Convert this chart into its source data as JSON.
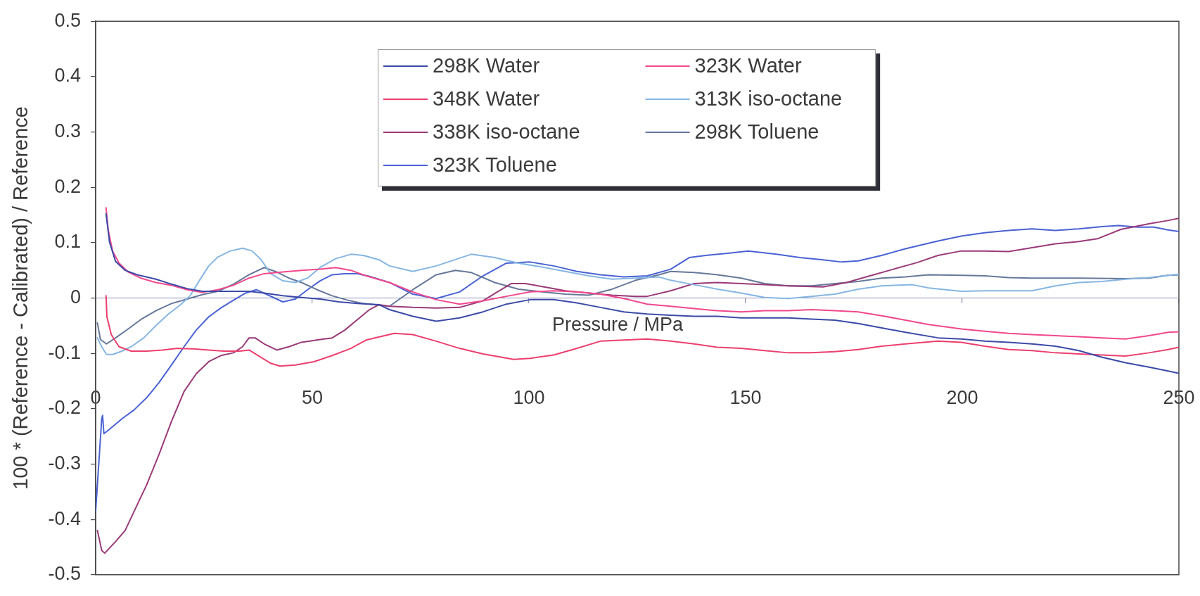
{
  "chart_data": {
    "type": "line",
    "xlabel": "Pressure / MPa",
    "ylabel": "100 * (Reference - Calibrated) / Reference",
    "xlim": [
      0,
      250
    ],
    "xticks": [
      0,
      50,
      100,
      150,
      200,
      250
    ],
    "ylim": [
      -0.5,
      0.5
    ],
    "yticks": [
      -0.5,
      -0.4,
      -0.3,
      -0.2,
      -0.1,
      0,
      0.1,
      0.2,
      0.3,
      0.4,
      0.5
    ],
    "legend": "top",
    "ref_lines": [
      {
        "axis": "y",
        "value": 0,
        "color": "#8b90b8"
      }
    ],
    "series": [
      {
        "name": "298K Water",
        "color": "#3c4aa8",
        "x": [
          2.4,
          3.2,
          4.6,
          6.8,
          9.6,
          13.9,
          17.5,
          21.1,
          24.6,
          31.8,
          35.4,
          38.9,
          43.2,
          47.5,
          51.8,
          56.1,
          60.4,
          65.4,
          67.8,
          73.2,
          78.6,
          84,
          89.4,
          94.8,
          100.3,
          105.7,
          111.1,
          116.5,
          121.9,
          127.3,
          132.7,
          138.1,
          143.5,
          149,
          159.8,
          165.2,
          170.6,
          176,
          181.4,
          186.9,
          194.4,
          199.8,
          205.2,
          210.7,
          216.1,
          221.5,
          226.9,
          232.3,
          237.7,
          243.1,
          247.5,
          250
        ],
        "values": [
          0.152,
          0.101,
          0.066,
          0.05,
          0.042,
          0.034,
          0.025,
          0.017,
          0.012,
          0.012,
          0.012,
          0.009,
          0.004,
          0.001,
          -0.002,
          -0.007,
          -0.01,
          -0.012,
          -0.021,
          -0.033,
          -0.042,
          -0.036,
          -0.025,
          -0.011,
          -0.003,
          -0.003,
          -0.009,
          -0.017,
          -0.025,
          -0.029,
          -0.031,
          -0.033,
          -0.033,
          -0.036,
          -0.036,
          -0.038,
          -0.04,
          -0.046,
          -0.054,
          -0.062,
          -0.072,
          -0.074,
          -0.078,
          -0.08,
          -0.083,
          -0.087,
          -0.095,
          -0.107,
          -0.117,
          -0.125,
          -0.132,
          -0.136
        ]
      },
      {
        "name": "323K Water",
        "color": "#f2488c",
        "x": [
          2.4,
          2.9,
          3.9,
          5.4,
          7.5,
          10.4,
          13.9,
          17.5,
          21.1,
          24.6,
          28.2,
          31.8,
          35.4,
          38.9,
          43.2,
          47.5,
          51.8,
          55.4,
          58.9,
          62.4,
          67.8,
          73.2,
          78.6,
          84,
          89.4,
          94.8,
          100.3,
          105.7,
          111.1,
          116.5,
          121.9,
          127.3,
          132.7,
          138.1,
          143.5,
          149,
          154.4,
          159.8,
          165.2,
          170.6,
          176,
          181.4,
          186.9,
          192.3,
          199.8,
          205.2,
          210.7,
          216.1,
          221.5,
          226.9,
          232.3,
          237.7,
          243.1,
          247.5,
          250
        ],
        "values": [
          0.163,
          0.123,
          0.085,
          0.063,
          0.047,
          0.036,
          0.028,
          0.023,
          0.015,
          0.01,
          0.015,
          0.023,
          0.036,
          0.044,
          0.047,
          0.05,
          0.052,
          0.055,
          0.05,
          0.04,
          0.028,
          0.011,
          -0.003,
          -0.011,
          -0.005,
          0.003,
          0.011,
          0.013,
          0.011,
          0.007,
          -0.001,
          -0.011,
          -0.015,
          -0.019,
          -0.023,
          -0.025,
          -0.023,
          -0.023,
          -0.021,
          -0.023,
          -0.025,
          -0.032,
          -0.04,
          -0.048,
          -0.056,
          -0.06,
          -0.064,
          -0.066,
          -0.068,
          -0.07,
          -0.072,
          -0.074,
          -0.068,
          -0.062,
          -0.061
        ]
      },
      {
        "name": "348K Water",
        "color": "#ec3f6e",
        "x": [
          2.4,
          2.6,
          3.6,
          5.4,
          8.2,
          11.8,
          15.4,
          18.9,
          22.5,
          26.1,
          29.6,
          33.2,
          35.4,
          37.5,
          40.4,
          42.5,
          46.1,
          50.4,
          54.6,
          58.9,
          62.4,
          68.9,
          73.2,
          78.6,
          84,
          89.4,
          96.5,
          100.3,
          105.7,
          111.1,
          116.5,
          121.9,
          127.3,
          132.7,
          138.1,
          143.5,
          149,
          154.4,
          159.8,
          165.2,
          170.6,
          176,
          181.4,
          186.9,
          194.4,
          199.8,
          205.2,
          210.7,
          216.1,
          221.5,
          226.9,
          232.3,
          237.7,
          243.1,
          247.5,
          250
        ],
        "values": [
          0.004,
          -0.034,
          -0.066,
          -0.088,
          -0.096,
          -0.096,
          -0.094,
          -0.091,
          -0.092,
          -0.094,
          -0.096,
          -0.096,
          -0.094,
          -0.104,
          -0.118,
          -0.123,
          -0.121,
          -0.115,
          -0.104,
          -0.091,
          -0.076,
          -0.064,
          -0.066,
          -0.078,
          -0.091,
          -0.101,
          -0.111,
          -0.109,
          -0.103,
          -0.091,
          -0.078,
          -0.076,
          -0.074,
          -0.078,
          -0.083,
          -0.089,
          -0.091,
          -0.095,
          -0.099,
          -0.099,
          -0.097,
          -0.093,
          -0.087,
          -0.083,
          -0.078,
          -0.08,
          -0.087,
          -0.093,
          -0.095,
          -0.099,
          -0.101,
          -0.103,
          -0.105,
          -0.099,
          -0.093,
          -0.089
        ]
      },
      {
        "name": "313K iso-octane",
        "color": "#86b6e2",
        "x": [
          0.4,
          1.4,
          2.5,
          3.9,
          6.1,
          8.2,
          11.1,
          13.9,
          16.8,
          19.6,
          21.8,
          23.9,
          26.1,
          28.2,
          31.1,
          33.9,
          36.1,
          38.2,
          40.4,
          43.2,
          46.1,
          48.9,
          51.8,
          55.4,
          58.9,
          61.8,
          65.4,
          67.8,
          73.2,
          78.6,
          86.7,
          92.1,
          97.6,
          103,
          108.4,
          113.8,
          119.2,
          124.6,
          130,
          132.7,
          138.1,
          143.5,
          149,
          154.4,
          159.8,
          165.2,
          170.6,
          176,
          181.4,
          188.5,
          192.3,
          199.8,
          205.2,
          216.1,
          221.5,
          226.9,
          232.3,
          237.7,
          243.1,
          247.5,
          250
        ],
        "values": [
          -0.072,
          -0.088,
          -0.102,
          -0.102,
          -0.096,
          -0.088,
          -0.072,
          -0.05,
          -0.029,
          -0.012,
          0.004,
          0.031,
          0.058,
          0.074,
          0.085,
          0.09,
          0.085,
          0.069,
          0.044,
          0.031,
          0.028,
          0.036,
          0.055,
          0.071,
          0.079,
          0.077,
          0.069,
          0.058,
          0.048,
          0.058,
          0.079,
          0.073,
          0.063,
          0.056,
          0.048,
          0.04,
          0.034,
          0.036,
          0.038,
          0.032,
          0.024,
          0.016,
          0.009,
          0.001,
          -0.001,
          0.003,
          0.007,
          0.016,
          0.022,
          0.024,
          0.018,
          0.012,
          0.013,
          0.013,
          0.022,
          0.028,
          0.03,
          0.034,
          0.037,
          0.041,
          0.043
        ]
      },
      {
        "name": "338K iso-octane",
        "color": "#9a3a78",
        "x": [
          0.4,
          1.4,
          2.1,
          4.6,
          6.8,
          8.9,
          11.8,
          14.6,
          17.5,
          20.4,
          23.2,
          26.1,
          28.9,
          31.8,
          33.9,
          35.4,
          36.8,
          38.9,
          41.8,
          44.6,
          47.5,
          51.8,
          54.6,
          57.5,
          60.4,
          63.2,
          65.4,
          67.8,
          73.2,
          78.6,
          84,
          89.4,
          92.7,
          95.9,
          99.2,
          103.5,
          108.4,
          113.8,
          119.2,
          124.6,
          127.3,
          132.7,
          138.1,
          143.5,
          149,
          154.4,
          159.8,
          167.9,
          173.3,
          178.7,
          184.1,
          189.6,
          194.4,
          199.8,
          205.2,
          210.7,
          216.1,
          221.5,
          226.9,
          231.2,
          236.6,
          243.1,
          247.5,
          250
        ],
        "values": [
          -0.42,
          -0.456,
          -0.461,
          -0.44,
          -0.42,
          -0.385,
          -0.337,
          -0.283,
          -0.223,
          -0.169,
          -0.137,
          -0.115,
          -0.104,
          -0.099,
          -0.088,
          -0.072,
          -0.072,
          -0.083,
          -0.094,
          -0.088,
          -0.08,
          -0.075,
          -0.072,
          -0.058,
          -0.039,
          -0.021,
          -0.012,
          -0.015,
          -0.017,
          -0.018,
          -0.017,
          -0.005,
          0.011,
          0.026,
          0.026,
          0.02,
          0.013,
          0.009,
          0.005,
          0.003,
          0.003,
          0.013,
          0.026,
          0.028,
          0.026,
          0.024,
          0.022,
          0.02,
          0.028,
          0.04,
          0.052,
          0.064,
          0.077,
          0.085,
          0.085,
          0.084,
          0.091,
          0.098,
          0.102,
          0.107,
          0.124,
          0.134,
          0.14,
          0.144
        ]
      },
      {
        "name": "298K Toluene",
        "color": "#66789a",
        "x": [
          0.4,
          1.1,
          2.5,
          4.6,
          7.5,
          10.4,
          13.9,
          17.5,
          21.1,
          24.6,
          28.2,
          31.8,
          35.4,
          38.9,
          41.8,
          44.6,
          47.5,
          51.1,
          54.6,
          58.2,
          61.8,
          67.8,
          73.2,
          78.6,
          83,
          86.7,
          92.1,
          97.6,
          103,
          108.4,
          113.8,
          119.2,
          124.6,
          130,
          132.7,
          138.1,
          143.5,
          149,
          154.4,
          159.8,
          165.2,
          170.6,
          176,
          181.4,
          186.9,
          192.3,
          199.8,
          205.2,
          210.7,
          216.1,
          226.9,
          237.7,
          243.1,
          247.5,
          250
        ],
        "values": [
          -0.045,
          -0.075,
          -0.083,
          -0.072,
          -0.056,
          -0.039,
          -0.023,
          -0.01,
          -0.002,
          0.006,
          0.012,
          0.025,
          0.042,
          0.055,
          0.047,
          0.036,
          0.028,
          0.015,
          0.004,
          -0.004,
          -0.01,
          -0.015,
          0.015,
          0.042,
          0.05,
          0.046,
          0.028,
          0.016,
          0.011,
          0.007,
          0.005,
          0.016,
          0.032,
          0.042,
          0.048,
          0.046,
          0.042,
          0.036,
          0.026,
          0.022,
          0.022,
          0.026,
          0.03,
          0.036,
          0.038,
          0.042,
          0.041,
          0.04,
          0.037,
          0.036,
          0.036,
          0.035,
          0.036,
          0.041,
          0.042
        ]
      },
      {
        "name": "323K Toluene",
        "color": "#4a62d4",
        "x": [
          0,
          1.4,
          1.6,
          1.9,
          3.2,
          6.1,
          8.9,
          11.8,
          14.6,
          17.5,
          20.4,
          23.2,
          26.1,
          28.9,
          31.8,
          34.6,
          37.1,
          39.6,
          43.2,
          46.1,
          48.9,
          51.8,
          54.6,
          57.5,
          60.4,
          63.2,
          67.8,
          73.2,
          78.6,
          84,
          89.4,
          94.8,
          100.3,
          105.7,
          111.1,
          116.5,
          121.9,
          127.3,
          132.7,
          137,
          140.8,
          146.2,
          150.6,
          157.1,
          162.5,
          167.9,
          172.2,
          176,
          181.4,
          186.9,
          194.4,
          199.8,
          205.2,
          210.7,
          216.1,
          221.5,
          226.9,
          232.3,
          236.1,
          240.4,
          244.2,
          247.5,
          250
        ],
        "values": [
          -0.385,
          -0.218,
          -0.212,
          -0.245,
          -0.237,
          -0.218,
          -0.202,
          -0.18,
          -0.153,
          -0.121,
          -0.088,
          -0.058,
          -0.034,
          -0.018,
          -0.004,
          0.009,
          0.015,
          0.006,
          -0.007,
          -0.002,
          0.015,
          0.031,
          0.042,
          0.044,
          0.044,
          0.039,
          0.028,
          0.007,
          -0.001,
          0.011,
          0.04,
          0.063,
          0.065,
          0.058,
          0.048,
          0.042,
          0.038,
          0.04,
          0.052,
          0.073,
          0.077,
          0.081,
          0.085,
          0.079,
          0.073,
          0.069,
          0.065,
          0.067,
          0.077,
          0.089,
          0.103,
          0.112,
          0.118,
          0.122,
          0.125,
          0.122,
          0.125,
          0.129,
          0.131,
          0.128,
          0.128,
          0.123,
          0.12
        ]
      }
    ]
  }
}
